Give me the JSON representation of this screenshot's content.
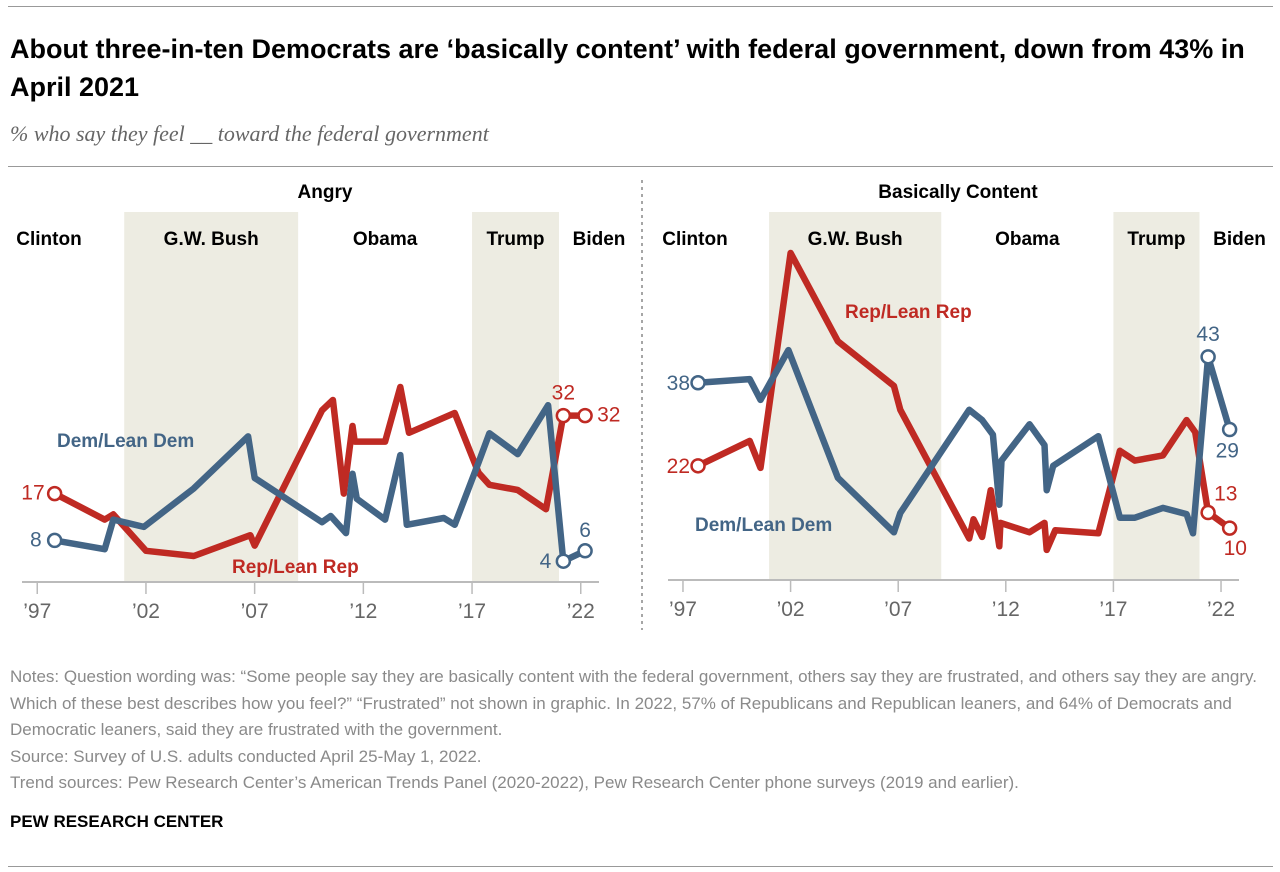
{
  "header": {
    "title": "About three-in-ten Democrats are ‘basically content’ with federal government, down from 43% in April 2021",
    "subtitle": "% who say they feel __ toward the federal government"
  },
  "colors": {
    "rep": "#BF2A23",
    "dem": "#436586",
    "band": "#EDECE2",
    "axis": "#bbbbbb",
    "tick_text": "#666666"
  },
  "chart_data": [
    {
      "type": "line",
      "title": "Angry",
      "x_ticks": [
        1997,
        2002,
        2007,
        2012,
        2017,
        2022
      ],
      "x_tick_labels": [
        "’97",
        "’02",
        "’07",
        "’12",
        "’17",
        "’22"
      ],
      "xlim": [
        1995.7,
        2023.3
      ],
      "ylim": [
        0,
        40
      ],
      "grid": false,
      "eras": [
        {
          "label": "Clinton",
          "start": 1995.7,
          "end": 2001.0,
          "shaded": false
        },
        {
          "label": "G.W. Bush",
          "start": 2001.0,
          "end": 2009.0,
          "shaded": true
        },
        {
          "label": "Obama",
          "start": 2009.0,
          "end": 2017.0,
          "shaded": false
        },
        {
          "label": "Trump",
          "start": 2017.0,
          "end": 2021.0,
          "shaded": true
        },
        {
          "label": "Biden",
          "start": 2021.0,
          "end": 2023.3,
          "shaded": false
        }
      ],
      "series": [
        {
          "name": "Rep/Lean Rep",
          "color_key": "rep",
          "x": [
            1997.8,
            2000.1,
            2000.5,
            2002.0,
            2004.2,
            2006.8,
            2007.0,
            2010.1,
            2010.6,
            2011.1,
            2011.5,
            2011.6,
            2013.0,
            2013.7,
            2014.1,
            2016.2,
            2017.3,
            2017.8,
            2019.1,
            2020.4,
            2021.2,
            2022.2
          ],
          "y": [
            17,
            12,
            13,
            6,
            5,
            9,
            7,
            33,
            35,
            17,
            30,
            27,
            27,
            37.5,
            28.7,
            32.5,
            21,
            18.7,
            17.7,
            14,
            32,
            32
          ],
          "labels": {
            "first": "17",
            "penultimate": "32",
            "last": "32"
          }
        },
        {
          "name": "Dem/Lean Dem",
          "color_key": "dem",
          "x": [
            1997.8,
            2000.1,
            2000.5,
            2001.9,
            2004.2,
            2006.7,
            2007.0,
            2010.1,
            2010.5,
            2011.2,
            2011.5,
            2011.7,
            2013.0,
            2013.7,
            2014.0,
            2015.7,
            2016.2,
            2017.3,
            2017.8,
            2019.1,
            2020.5,
            2021.2,
            2022.2
          ],
          "y": [
            8,
            6.3,
            12,
            10.6,
            18,
            28,
            20,
            11.5,
            12.7,
            9.4,
            20.8,
            16,
            12,
            24.4,
            11,
            12.3,
            11,
            23,
            28.6,
            24.6,
            34,
            4,
            6
          ],
          "labels": {
            "first": "8",
            "penultimate": "4",
            "last": "6"
          }
        }
      ]
    },
    {
      "type": "line",
      "title": "Basically Content",
      "x_ticks": [
        1997,
        2002,
        2007,
        2012,
        2017,
        2022
      ],
      "x_tick_labels": [
        "’97",
        "’02",
        "’07",
        "’12",
        "’17",
        "’22"
      ],
      "xlim": [
        1995.7,
        2023.3
      ],
      "ylim": [
        0,
        65
      ],
      "grid": false,
      "eras": [
        {
          "label": "Clinton",
          "start": 1995.7,
          "end": 2001.0,
          "shaded": false
        },
        {
          "label": "G.W. Bush",
          "start": 2001.0,
          "end": 2009.0,
          "shaded": true
        },
        {
          "label": "Obama",
          "start": 2009.0,
          "end": 2017.0,
          "shaded": false
        },
        {
          "label": "Trump",
          "start": 2017.0,
          "end": 2021.0,
          "shaded": true
        },
        {
          "label": "Biden",
          "start": 2021.0,
          "end": 2023.3,
          "shaded": false
        }
      ],
      "series": [
        {
          "name": "Rep/Lean Rep",
          "color_key": "rep",
          "x": [
            1997.7,
            2000.1,
            2000.6,
            2002.0,
            2004.2,
            2006.8,
            2007.1,
            2010.3,
            2010.5,
            2010.9,
            2011.3,
            2011.7,
            2011.75,
            2013.1,
            2013.8,
            2013.9,
            2014.3,
            2016.3,
            2017.3,
            2018.0,
            2019.3,
            2020.4,
            2020.8,
            2021.4,
            2022.4
          ],
          "y": [
            22,
            26.8,
            21.6,
            63,
            46,
            37.4,
            32.8,
            8,
            11.7,
            8.3,
            17.3,
            6.5,
            11,
            9.2,
            11,
            5.8,
            9.6,
            9,
            24.9,
            23,
            24,
            30.8,
            28.5,
            13,
            10
          ],
          "labels": {
            "first": "22",
            "penultimate": "13",
            "last": "10"
          }
        },
        {
          "name": "Dem/Lean Dem",
          "color_key": "dem",
          "x": [
            1997.7,
            2000.1,
            2000.6,
            2001.9,
            2004.2,
            2006.8,
            2007.1,
            2010.3,
            2010.9,
            2011.4,
            2011.7,
            2011.8,
            2013.1,
            2013.8,
            2013.9,
            2014.2,
            2016.3,
            2017.3,
            2018.0,
            2019.3,
            2020.4,
            2020.7,
            2021.4,
            2022.4
          ],
          "y": [
            38,
            38.7,
            34.7,
            44.3,
            19.7,
            9.2,
            12.9,
            32.8,
            30.8,
            28,
            14.5,
            23,
            30,
            26,
            17.3,
            22,
            27.7,
            12,
            12,
            13.9,
            12.7,
            9,
            43,
            29
          ],
          "labels": {
            "first": "38",
            "penultimate": "43",
            "last": "29"
          }
        }
      ]
    }
  ],
  "notes": [
    "Notes: Question wording was: “Some people say they are basically content with the federal government, others say they are frustrated, and others say they are angry. Which of these best describes how you feel?” “Frustrated” not shown in graphic. In 2022, 57% of Republicans and Republican leaners, and 64% of Democrats and Democratic leaners, said they are frustrated with the government.",
    "Source: Survey of U.S. adults conducted April 25-May 1, 2022.",
    "Trend sources: Pew Research Center’s American Trends Panel (2020-2022), Pew Research Center phone surveys (2019 and earlier)."
  ],
  "footer": {
    "brand": "PEW RESEARCH CENTER"
  }
}
